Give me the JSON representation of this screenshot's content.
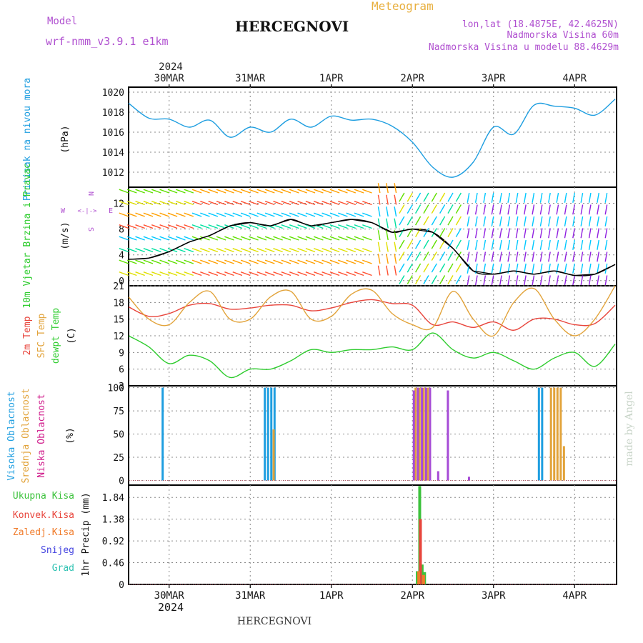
{
  "header": {
    "model_label": "Model",
    "model_value": "wrf-nmm_v3.9.1  e1km",
    "title": "HERCEGNOVI",
    "product": "Meteogram",
    "lonlat": "lon,lat (18.4875E, 42.4625N)",
    "elevation": "Nadmorska Visina 60m",
    "model_elevation": "Nadmorska Visina u modelu 88.4629m"
  },
  "footer": {
    "station": "HERCEGNOVI",
    "credit": "made by Angel"
  },
  "time_axis": {
    "year": "2024",
    "labels": [
      "30MAR",
      "31MAR",
      "1APR",
      "2APR",
      "3APR",
      "4APR"
    ]
  },
  "colors": {
    "pressure": "#1e9ee0",
    "temp2m": "#e8453c",
    "sfc_temp": "#e2a33a",
    "dewpt": "#2ecc2e",
    "high_cloud": "#1e9ee0",
    "mid_cloud": "#e2a33a",
    "low_cloud": "#a64bd6",
    "total_precip": "#3cc23c",
    "conv_precip": "#e8453c",
    "grid_precip": "#f07b2a",
    "snow": "#4545e0",
    "graupel": "#2ec2b2",
    "purple_text": "#b050d0",
    "gold_text": "#e8b040"
  },
  "wind_legend": {
    "n": "N",
    "s": "S",
    "e": "E",
    "w": "W"
  },
  "chart_data": [
    {
      "type": "line",
      "panel": "pressure",
      "ylabel_left": "Pritisak na nivou mora",
      "ylabel": "(hPa)",
      "ylim": [
        1010.5,
        1020.5
      ],
      "yticks": [
        "1020",
        "1018",
        "1016",
        "1014",
        "1012"
      ],
      "x_days": [
        0.0,
        0.25,
        0.5,
        0.75,
        1.0,
        1.25,
        1.5,
        1.75,
        2.0,
        2.25,
        2.5,
        2.75,
        3.0,
        3.25,
        3.5,
        3.75,
        4.0,
        4.25,
        4.5,
        4.75,
        5.0,
        5.25,
        5.5,
        5.75,
        6.0
      ],
      "series": [
        {
          "values": [
            1018.9,
            1017.4,
            1017.3,
            1016.5,
            1017.2,
            1015.5,
            1016.5,
            1016.0,
            1017.3,
            1016.5,
            1017.6,
            1017.2,
            1017.3,
            1016.6,
            1015.0,
            1012.5,
            1011.5,
            1013.0,
            1016.5,
            1015.8,
            1018.7,
            1018.6,
            1018.4,
            1017.7,
            1019.3
          ]
        }
      ]
    },
    {
      "type": "line",
      "panel": "wind",
      "ylabel_left": "10m Vjetar Brzina i Pravac",
      "ylabel": "(m/s)",
      "ylim": [
        -0.8,
        14.5
      ],
      "yticks": [
        "12",
        "8",
        "4",
        "0"
      ],
      "x_days": [
        0.0,
        0.25,
        0.5,
        0.75,
        1.0,
        1.25,
        1.5,
        1.75,
        2.0,
        2.25,
        2.5,
        2.75,
        3.0,
        3.25,
        3.5,
        3.75,
        4.0,
        4.25,
        4.5,
        4.75,
        5.0,
        5.25,
        5.5,
        5.75,
        6.0
      ],
      "series": [
        {
          "values": [
            3.3,
            3.5,
            4.5,
            6.0,
            7.0,
            8.5,
            9.0,
            8.5,
            9.5,
            8.5,
            9.0,
            9.5,
            9.0,
            7.5,
            8.0,
            7.5,
            5.0,
            1.5,
            1.0,
            1.5,
            1.0,
            1.5,
            0.8,
            1.0,
            2.5
          ]
        }
      ]
    },
    {
      "type": "line",
      "panel": "temperature",
      "ylabel_left": [
        "2m Temp",
        "SFC Temp",
        "dewpt Temp"
      ],
      "ylabel": "(C)",
      "ylim": [
        3,
        21
      ],
      "yticks": [
        "21",
        "18",
        "15",
        "12",
        "9",
        "6",
        "3"
      ],
      "x_days": [
        0.0,
        0.25,
        0.5,
        0.75,
        1.0,
        1.25,
        1.5,
        1.75,
        2.0,
        2.25,
        2.5,
        2.75,
        3.0,
        3.25,
        3.5,
        3.75,
        4.0,
        4.25,
        4.5,
        4.75,
        5.0,
        5.25,
        5.5,
        5.75,
        6.0
      ],
      "series": [
        {
          "values": [
            17.2,
            15.5,
            16.0,
            17.5,
            17.8,
            16.8,
            17.0,
            17.5,
            17.5,
            16.5,
            17.0,
            18.0,
            18.5,
            17.8,
            17.5,
            14.0,
            14.5,
            13.5,
            14.5,
            13.0,
            15.0,
            15.0,
            14.0,
            14.2,
            17.5
          ]
        },
        {
          "values": [
            19.0,
            15.0,
            14.0,
            18.0,
            20.0,
            15.0,
            15.0,
            19.0,
            20.0,
            15.0,
            15.5,
            19.5,
            20.2,
            16.0,
            14.0,
            13.5,
            20.0,
            15.0,
            12.0,
            18.0,
            20.5,
            15.0,
            12.0,
            15.0,
            21.0
          ]
        },
        {
          "values": [
            12.0,
            10.0,
            7.0,
            8.5,
            7.5,
            4.5,
            6.0,
            6.0,
            7.5,
            9.5,
            9.0,
            9.5,
            9.5,
            10.0,
            9.5,
            12.5,
            9.5,
            8.0,
            9.0,
            7.5,
            6.0,
            8.0,
            9.0,
            6.5,
            10.5
          ]
        }
      ]
    },
    {
      "type": "bar",
      "panel": "clouds",
      "ylabel_left": [
        "Visoka Oblacnost",
        "Srednja Oblacnost",
        "Niska Oblacnost"
      ],
      "ylabel": "(%)",
      "ylim": [
        -5,
        102
      ],
      "yticks": [
        "100",
        "75",
        "50",
        "25",
        "0"
      ],
      "series": [
        {
          "name": "Visoka Oblacnost",
          "bars": [
            [
              0.42,
              100
            ],
            [
              1.68,
              100
            ],
            [
              1.72,
              100
            ],
            [
              1.76,
              100
            ],
            [
              1.8,
              100
            ],
            [
              5.06,
              100
            ],
            [
              5.1,
              100
            ]
          ]
        },
        {
          "name": "Srednja Oblacnost",
          "bars": [
            [
              1.78,
              55
            ],
            [
              3.53,
              100
            ],
            [
              3.58,
              100
            ],
            [
              3.63,
              100
            ],
            [
              3.68,
              100
            ],
            [
              5.2,
              100
            ],
            [
              5.24,
              100
            ],
            [
              5.28,
              100
            ],
            [
              5.32,
              100
            ],
            [
              5.36,
              37
            ]
          ]
        },
        {
          "name": "Niska Oblacnost",
          "bars": [
            [
              3.5,
              97
            ],
            [
              3.55,
              100
            ],
            [
              3.6,
              100
            ],
            [
              3.65,
              100
            ],
            [
              3.7,
              100
            ],
            [
              3.92,
              97
            ],
            [
              3.8,
              10
            ],
            [
              4.18,
              4
            ]
          ]
        }
      ]
    },
    {
      "type": "bar",
      "panel": "precipitation",
      "ylabel_left": [
        "Ukupna Kisa",
        "Konvek.Kisa",
        "Zaledj.Kisa",
        "Snijeg",
        "Grad"
      ],
      "ylabel": "1hr Precip (mm)",
      "ylim": [
        0,
        2.1
      ],
      "yticks": [
        "1.84",
        "1.38",
        "0.92",
        "0.46",
        "0"
      ],
      "series": [
        {
          "name": "Ukupna Kisa",
          "bars": [
            [
              3.56,
              0.28
            ],
            [
              3.59,
              2.08
            ],
            [
              3.62,
              0.42
            ],
            [
              3.65,
              0.26
            ]
          ]
        },
        {
          "name": "Konvek.Kisa",
          "bars": [
            [
              3.59,
              1.38
            ]
          ]
        },
        {
          "name": "Zaledj.Kisa",
          "bars": [
            [
              3.56,
              0.28
            ],
            [
              3.62,
              0.2
            ]
          ]
        }
      ]
    }
  ]
}
